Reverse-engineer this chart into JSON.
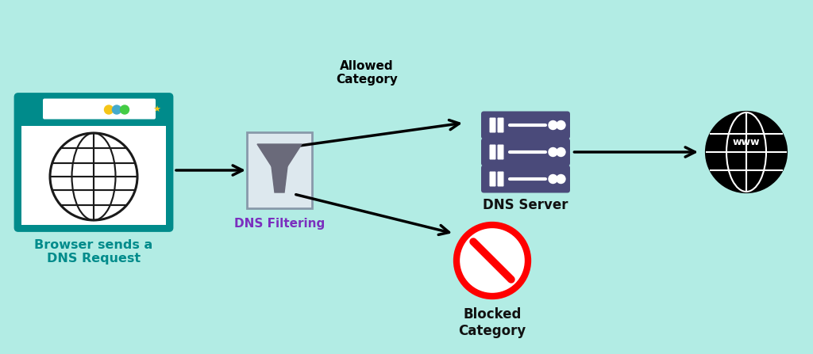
{
  "bg_color": "#b2ece4",
  "teal_color": "#008B8B",
  "purple_color": "#7B2FBE",
  "server_color": "#4a4a7a",
  "filter_box_edge": "#8899aa",
  "filter_box_face": "#dde8ee",
  "filter_icon_color": "#6a6a7a",
  "label_browser": "Browser sends a\nDNS Request",
  "label_filter": "DNS Filtering",
  "label_allowed": "Allowed\nCategory",
  "label_server": "DNS Server",
  "label_www": "www",
  "label_blocked": "Blocked\nCategory",
  "dots_colors": [
    "#f5c518",
    "#44aacc",
    "#44cc44"
  ],
  "browser_bg": "#008B8B",
  "browser_content_bg": "#ffffff"
}
